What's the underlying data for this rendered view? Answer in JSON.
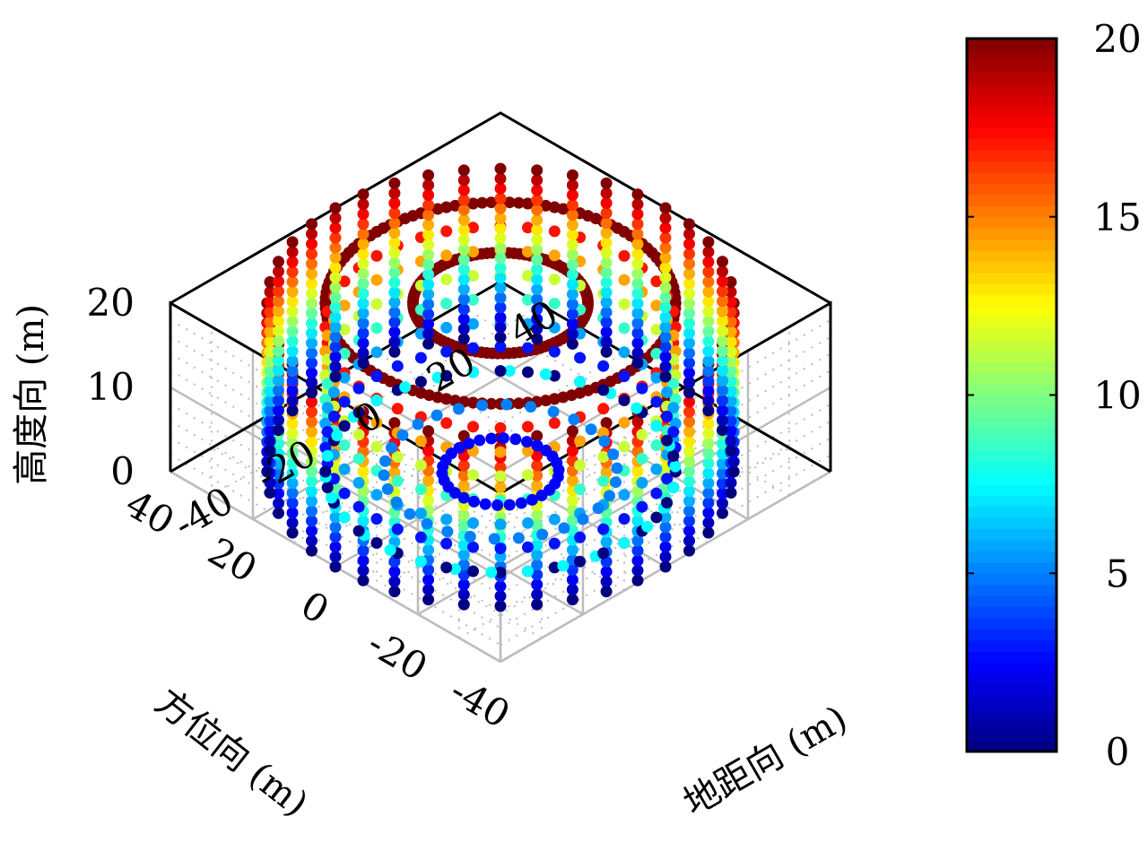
{
  "chart_data": {
    "type": "scatter3d",
    "title": "",
    "xlabel": "方位向 (m)",
    "ylabel": "地距向 (m)",
    "zlabel": "高度向 (m)",
    "xlim": [
      -40,
      40
    ],
    "ylim": [
      -40,
      40
    ],
    "zlim": [
      0,
      20
    ],
    "x_ticks": [
      "-40",
      "-20",
      "0",
      "20",
      "40"
    ],
    "y_ticks": [
      "-40",
      "-20",
      "0",
      "20",
      "40"
    ],
    "z_ticks": [
      "0",
      "10",
      "20"
    ],
    "grid": true,
    "colormap": "jet",
    "colorbar": {
      "range": [
        0,
        20
      ],
      "ticks": [
        "0",
        "5",
        "10",
        "15",
        "20"
      ],
      "placement": "right"
    },
    "color_variable": "height (z)",
    "structures": [
      {
        "shape": "cylinder",
        "radius": 40,
        "z_range": [
          0,
          20
        ],
        "rings": 18,
        "points_per_ring": 40
      },
      {
        "shape": "cylinder",
        "radius": 30,
        "z_range": [
          0,
          20
        ],
        "rings": 8,
        "points_per_ring": 40
      },
      {
        "shape": "ring",
        "radius": 30,
        "z": 20,
        "points": 120
      },
      {
        "shape": "ring",
        "radius": 15,
        "z": 20,
        "points": 100
      },
      {
        "shape": "disc",
        "radius": 30,
        "z": 0,
        "radial_steps": [
          10,
          20,
          30
        ],
        "points_per_ring": 30
      }
    ],
    "ring_z_values_outer": [
      0,
      1.18,
      2.35,
      3.53,
      4.71,
      5.88,
      7.06,
      8.24,
      9.41,
      10.59,
      11.76,
      12.94,
      14.12,
      15.29,
      16.47,
      17.65,
      18.82,
      20
    ],
    "ring_z_values_inner": [
      0,
      2.86,
      5.71,
      8.57,
      11.43,
      14.29,
      17.14,
      20
    ]
  }
}
